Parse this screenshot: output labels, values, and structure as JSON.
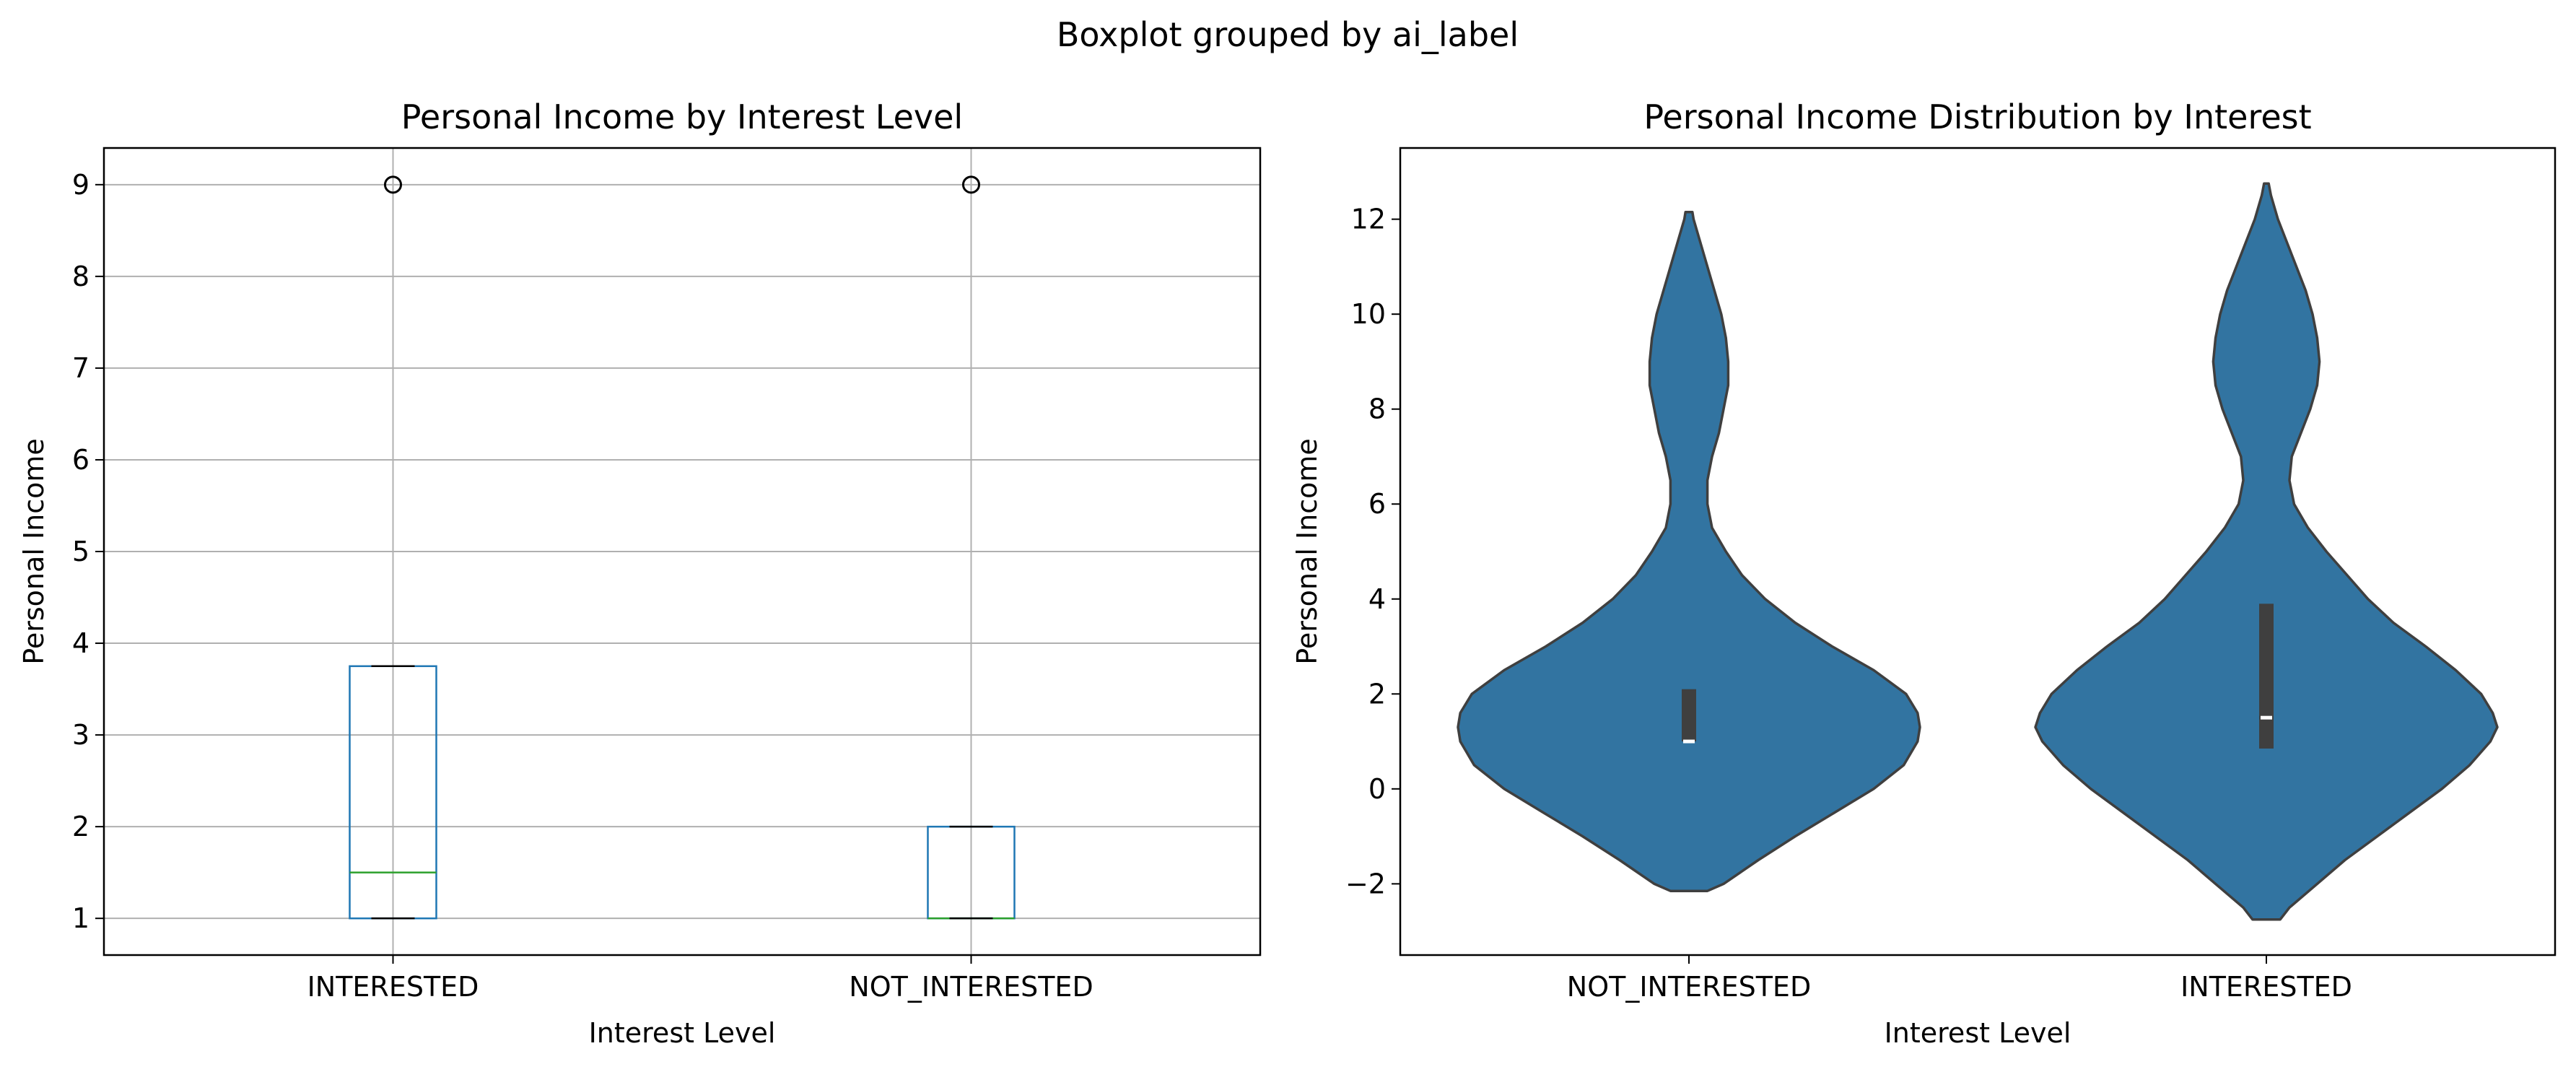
{
  "figure": {
    "suptitle": "Boxplot grouped by ai_label"
  },
  "chart_data": [
    {
      "type": "box",
      "title": "Personal Income by Interest Level",
      "xlabel": "Interest Level",
      "ylabel": "Personal Income",
      "ylim": [
        0.6,
        9.4
      ],
      "yticks": [
        1,
        2,
        3,
        4,
        5,
        6,
        7,
        8,
        9
      ],
      "grid": true,
      "categories": [
        "INTERESTED",
        "NOT_INTERESTED"
      ],
      "boxes": [
        {
          "category": "INTERESTED",
          "min": 1,
          "q1": 1,
          "median": 1.5,
          "q3": 3.75,
          "max": 3.75,
          "outliers": [
            9
          ]
        },
        {
          "category": "NOT_INTERESTED",
          "min": 1,
          "q1": 1,
          "median": 1,
          "q3": 2,
          "max": 2,
          "outliers": [
            9
          ]
        }
      ],
      "colors": {
        "box": "#1f77b4",
        "median": "#2ca02c",
        "grid": "#b0b0b0"
      }
    },
    {
      "type": "violin",
      "title": "Personal Income Distribution by Interest",
      "xlabel": "Interest Level",
      "ylabel": "Personal Income",
      "ylim": [
        -3.5,
        13.5
      ],
      "yticks": [
        -2,
        0,
        2,
        4,
        6,
        8,
        10,
        12
      ],
      "grid": false,
      "categories": [
        "NOT_INTERESTED",
        "INTERESTED"
      ],
      "violins": [
        {
          "category": "NOT_INTERESTED",
          "q1": 1,
          "median": 1,
          "q3": 2.1,
          "density_profile": [
            [
              -2.15,
              0.08
            ],
            [
              -2.0,
              0.15
            ],
            [
              -1.5,
              0.3
            ],
            [
              -1.0,
              0.46
            ],
            [
              -0.5,
              0.63
            ],
            [
              0.0,
              0.8
            ],
            [
              0.5,
              0.93
            ],
            [
              1.0,
              0.99
            ],
            [
              1.3,
              1.0
            ],
            [
              1.6,
              0.99
            ],
            [
              2.0,
              0.94
            ],
            [
              2.5,
              0.8
            ],
            [
              3.0,
              0.62
            ],
            [
              3.5,
              0.46
            ],
            [
              4.0,
              0.33
            ],
            [
              4.5,
              0.23
            ],
            [
              5.0,
              0.16
            ],
            [
              5.5,
              0.1
            ],
            [
              6.0,
              0.08
            ],
            [
              6.5,
              0.08
            ],
            [
              7.0,
              0.1
            ],
            [
              7.5,
              0.13
            ],
            [
              8.0,
              0.15
            ],
            [
              8.5,
              0.17
            ],
            [
              9.0,
              0.17
            ],
            [
              9.5,
              0.16
            ],
            [
              10.0,
              0.14
            ],
            [
              10.5,
              0.11
            ],
            [
              11.0,
              0.08
            ],
            [
              11.5,
              0.05
            ],
            [
              12.0,
              0.02
            ],
            [
              12.15,
              0.015
            ]
          ]
        },
        {
          "category": "INTERESTED",
          "q1": 0.85,
          "median": 1.5,
          "q3": 3.9,
          "density_profile": [
            [
              -2.75,
              0.06
            ],
            [
              -2.5,
              0.1
            ],
            [
              -2.0,
              0.22
            ],
            [
              -1.5,
              0.34
            ],
            [
              -1.0,
              0.48
            ],
            [
              -0.5,
              0.62
            ],
            [
              0.0,
              0.76
            ],
            [
              0.5,
              0.88
            ],
            [
              1.0,
              0.97
            ],
            [
              1.3,
              1.0
            ],
            [
              1.6,
              0.98
            ],
            [
              2.0,
              0.93
            ],
            [
              2.5,
              0.82
            ],
            [
              3.0,
              0.69
            ],
            [
              3.5,
              0.55
            ],
            [
              4.0,
              0.44
            ],
            [
              4.5,
              0.35
            ],
            [
              5.0,
              0.26
            ],
            [
              5.5,
              0.18
            ],
            [
              6.0,
              0.12
            ],
            [
              6.5,
              0.1
            ],
            [
              7.0,
              0.11
            ],
            [
              7.5,
              0.15
            ],
            [
              8.0,
              0.19
            ],
            [
              8.5,
              0.22
            ],
            [
              9.0,
              0.23
            ],
            [
              9.5,
              0.22
            ],
            [
              10.0,
              0.2
            ],
            [
              10.5,
              0.17
            ],
            [
              11.0,
              0.13
            ],
            [
              11.5,
              0.09
            ],
            [
              12.0,
              0.05
            ],
            [
              12.5,
              0.02
            ],
            [
              12.75,
              0.01
            ]
          ]
        }
      ],
      "colors": {
        "violin_fill": "#3274a1",
        "violin_edge": "#3f3f3f",
        "inner_box": "#3f3f3f",
        "inner_median": "#ffffff"
      }
    }
  ]
}
